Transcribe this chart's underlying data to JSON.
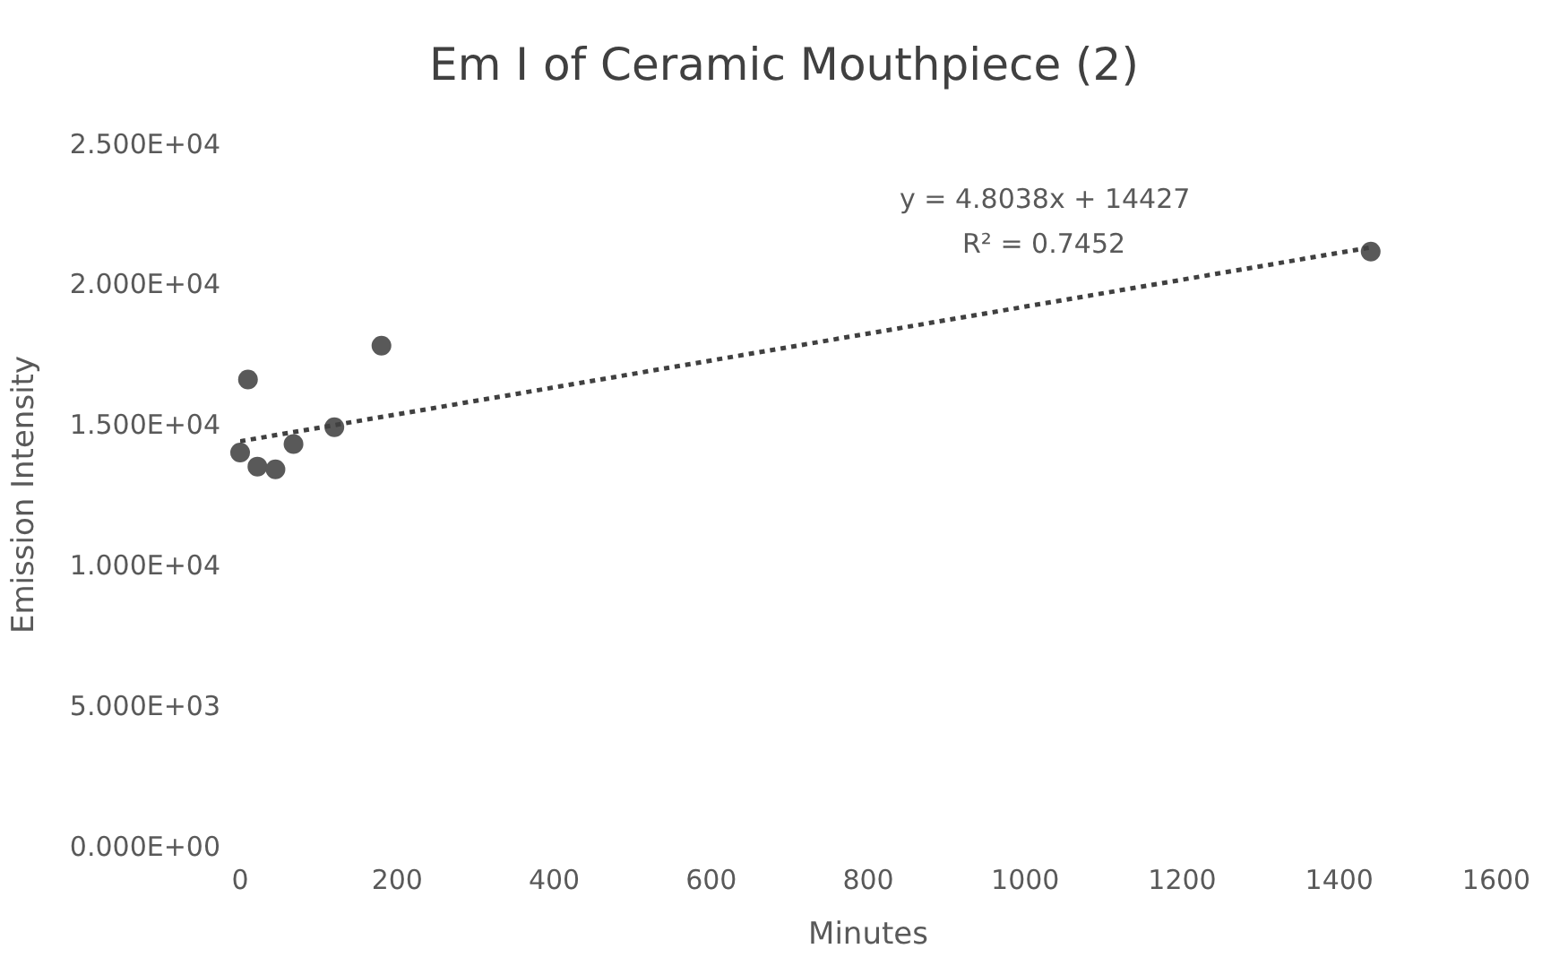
{
  "chart_data": {
    "type": "scatter",
    "title": "Em I of Ceramic Mouthpiece (2)",
    "xlabel": "Minutes",
    "ylabel": "Emission Intensity",
    "xlim": [
      0,
      1600
    ],
    "xticks": [
      0,
      200,
      400,
      600,
      800,
      1000,
      1200,
      1400,
      1600
    ],
    "ylim": [
      0,
      25000
    ],
    "yticks": [
      {
        "value": 0,
        "label": "0.000E+00"
      },
      {
        "value": 5000,
        "label": "5.000E+03"
      },
      {
        "value": 10000,
        "label": "1.000E+04"
      },
      {
        "value": 15000,
        "label": "1.500E+04"
      },
      {
        "value": 20000,
        "label": "2.000E+04"
      },
      {
        "value": 25000,
        "label": "2.500E+04"
      }
    ],
    "marker": "circle",
    "series": [
      {
        "color": "#595959",
        "x": [
          0,
          10,
          22,
          45,
          68,
          120,
          180,
          1440
        ],
        "values": [
          14000,
          16600,
          13500,
          13400,
          14300,
          14900,
          17800,
          21150
        ]
      },
      {
        "type": "line",
        "color": "#404040",
        "line_style": "dotted",
        "marker": "none",
        "x": [
          0,
          1440
        ],
        "values": [
          14400,
          21300
        ]
      }
    ],
    "annotations": [
      "y = 4.8038x + 14427",
      "R² = 0.7452"
    ]
  }
}
